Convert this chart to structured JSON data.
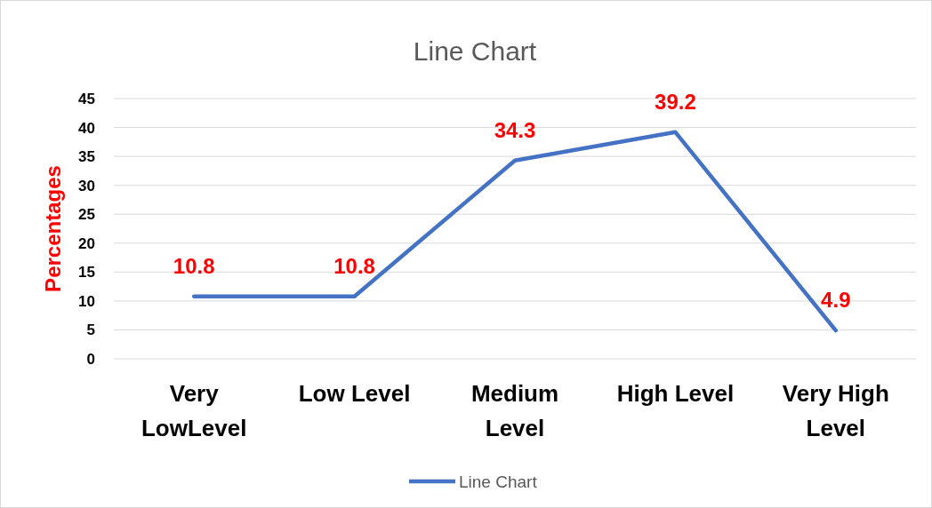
{
  "chart_data": {
    "type": "line",
    "title": "Line Chart",
    "ylabel": "Percentages",
    "categories": [
      "Very LowLevel",
      "Low Level",
      "Medium Level",
      "High Level",
      "Very High Level"
    ],
    "series": [
      {
        "name": "Line Chart",
        "color": "#4472c4",
        "values": [
          10.8,
          10.8,
          34.3,
          39.2,
          4.9
        ]
      }
    ],
    "ylim": [
      0,
      45
    ],
    "yticks": [
      0,
      5,
      10,
      15,
      20,
      25,
      30,
      35,
      40,
      45
    ],
    "grid": "y",
    "legend": "bottom",
    "data_labels": true,
    "marker": "none",
    "line_style": "solid"
  }
}
